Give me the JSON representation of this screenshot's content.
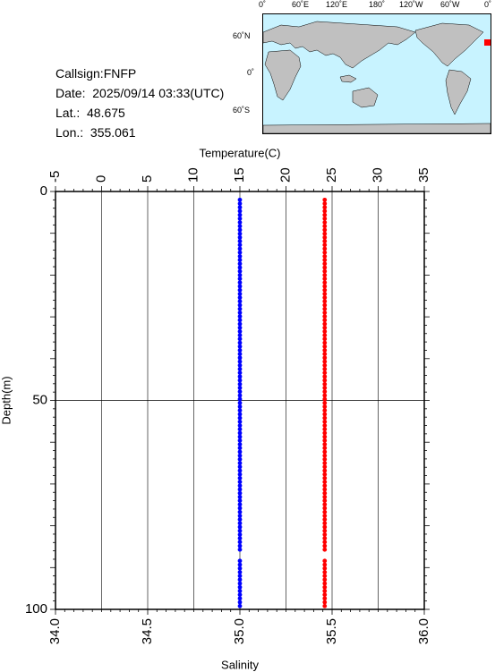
{
  "info": {
    "callsign": "Callsign:FNFP",
    "date": "Date:  2025/09/14 03:33(UTC)",
    "lat": "Lat.:  48.675",
    "lon": "Lon.:  355.061"
  },
  "map": {
    "top_labels": [
      "0˚",
      "60˚E",
      "120˚E",
      "180˚",
      "120˚W",
      "60˚W",
      "0˚"
    ],
    "left_labels": [
      "60˚N",
      "0˚",
      "60˚S"
    ],
    "ocean_color": "#c8f3ff",
    "land_color": "#c0c0c0",
    "marker_color": "#ff0000"
  },
  "chart_data": {
    "type": "line",
    "title": "",
    "x_top_label": "Temperature(C)",
    "x_top_ticks": [
      -5,
      0,
      5,
      10,
      15,
      20,
      25,
      30,
      35
    ],
    "x_top_range": [
      -5,
      35
    ],
    "x_bottom_label": "Salinity",
    "x_bottom_ticks": [
      "34.0",
      "34.5",
      "35.0",
      "35.5",
      "36.0"
    ],
    "x_bottom_range": [
      34.0,
      36.0
    ],
    "ylabel": "Depth(m)",
    "y_ticks": [
      0,
      50,
      100
    ],
    "y_range": [
      0,
      100
    ],
    "y_inverted": true,
    "grid": true,
    "series": [
      {
        "quantity": "temperature",
        "axis": "top",
        "color": "#0000ff",
        "depth": [
          2,
          100
        ],
        "value": [
          15.0,
          15.0
        ],
        "gap": [
          86,
          88
        ]
      },
      {
        "quantity": "salinity",
        "axis": "bottom",
        "color": "#ff0000",
        "depth": [
          2,
          100
        ],
        "value": [
          35.46,
          35.46
        ],
        "gap": [
          86,
          88
        ]
      }
    ]
  }
}
